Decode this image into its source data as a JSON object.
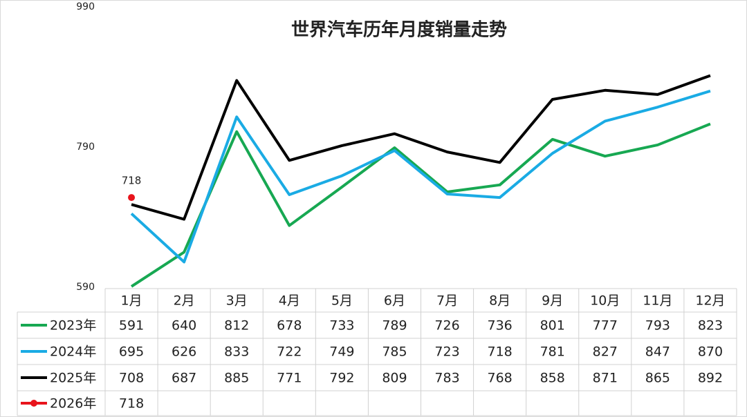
{
  "chart_data": {
    "type": "line",
    "title": "世界汽车历年月度销量走势",
    "categories": [
      "1月",
      "2月",
      "3月",
      "4月",
      "5月",
      "6月",
      "7月",
      "8月",
      "9月",
      "10月",
      "11月",
      "12月"
    ],
    "ylim": [
      590,
      990
    ],
    "yticks": [
      590,
      790,
      990
    ],
    "grid": false,
    "series": [
      {
        "name": "2023年",
        "color": "#17a852",
        "values": [
          591,
          640,
          812,
          678,
          733,
          789,
          726,
          736,
          801,
          777,
          793,
          823
        ]
      },
      {
        "name": "2024年",
        "color": "#1aabe4",
        "values": [
          695,
          626,
          833,
          722,
          749,
          785,
          723,
          718,
          781,
          827,
          847,
          870
        ]
      },
      {
        "name": "2025年",
        "color": "#000000",
        "values": [
          708,
          687,
          885,
          771,
          792,
          809,
          783,
          768,
          858,
          871,
          865,
          892
        ]
      },
      {
        "name": "2026年",
        "color": "#e8141c",
        "values": [
          718,
          null,
          null,
          null,
          null,
          null,
          null,
          null,
          null,
          null,
          null,
          null
        ]
      }
    ]
  }
}
